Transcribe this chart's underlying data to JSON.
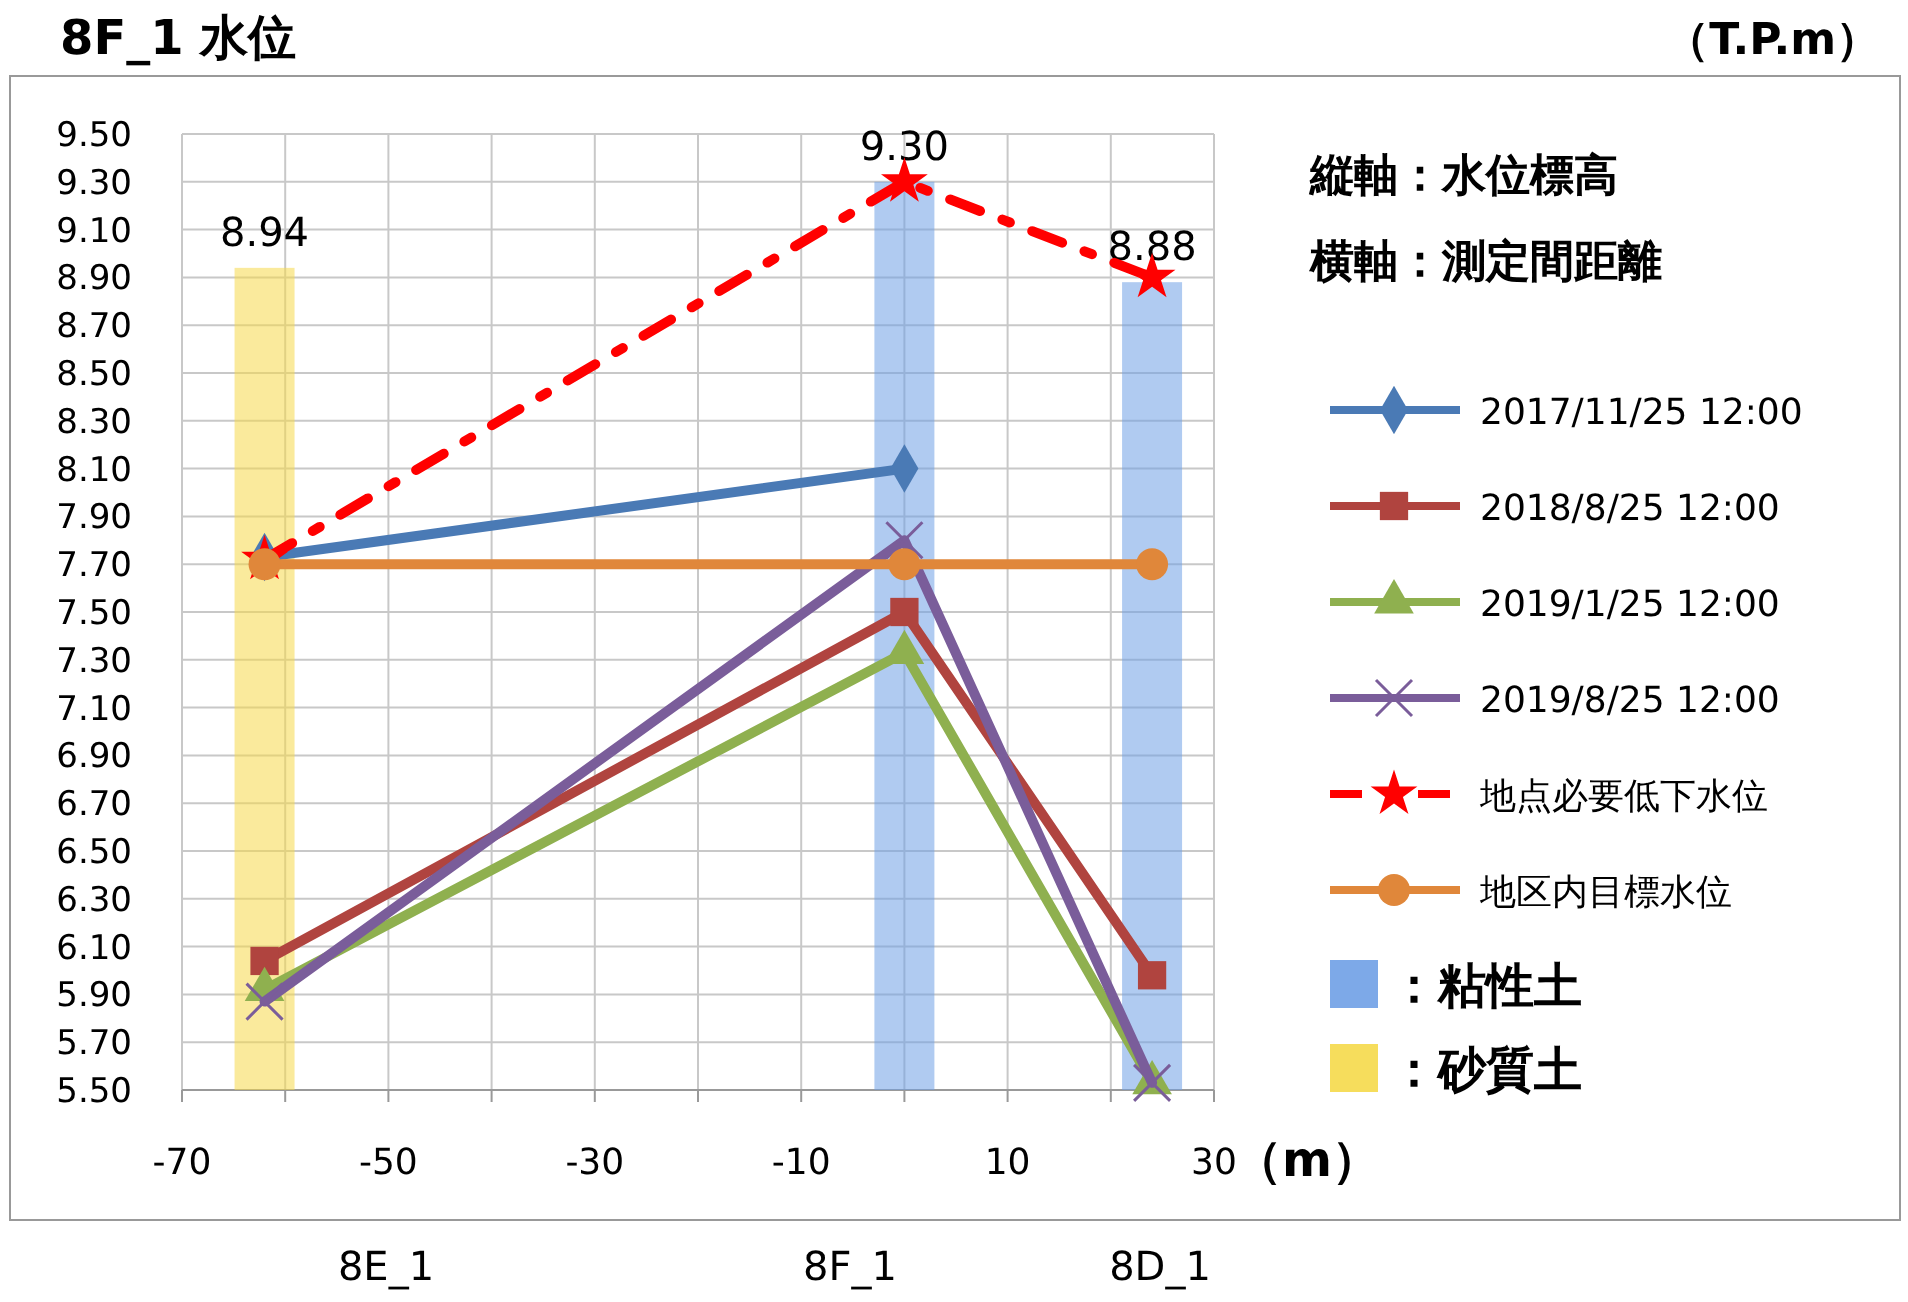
{
  "chart_data": {
    "type": "line",
    "title": "8F_1 水位",
    "xlabel": "（m）",
    "annotations": [
      "（T.P.m）",
      "縦軸：水位標高",
      "横軸：測定間距離",
      "8E_1",
      "8F_1",
      "8D_1"
    ],
    "x": [
      -62,
      0,
      24
    ],
    "series": [
      {
        "name": "2017/11/25 12:00",
        "color": "#4a7ab5",
        "values": [
          7.73,
          8.1,
          null
        ],
        "marker": "diamond"
      },
      {
        "name": "2018/8/25 12:00",
        "color": "#b0443f",
        "values": [
          6.04,
          7.5,
          5.98
        ],
        "marker": "square"
      },
      {
        "name": "2019/1/25 12:00",
        "color": "#8fb04f",
        "values": [
          5.92,
          7.33,
          5.53
        ],
        "marker": "triangle"
      },
      {
        "name": "2019/8/25 12:00",
        "color": "#7a5d9a",
        "values": [
          5.87,
          7.8,
          5.53
        ],
        "marker": "cross"
      },
      {
        "name": "地点必要低下水位",
        "color": "#ff0000",
        "values": [
          7.72,
          9.3,
          8.9
        ],
        "marker": "star",
        "line_style": "dashed"
      },
      {
        "name": "地区内目標水位",
        "color": "#e0873a",
        "values": [
          7.7,
          7.7,
          7.7
        ],
        "marker": "circle"
      },
      {
        "name": "：粘性土",
        "type": "bar",
        "color": "#6fa0e6",
        "x": [
          0,
          24
        ],
        "values": [
          9.3,
          8.88
        ],
        "value_labels": [
          "9.30",
          "8.88"
        ]
      },
      {
        "name": "：砂質土",
        "type": "bar",
        "color": "#f5d94a",
        "x": [
          -62
        ],
        "values": [
          8.94
        ],
        "value_labels": [
          "8.94"
        ]
      }
    ],
    "xlim": [
      -70,
      30
    ],
    "xticks": [
      -70,
      {
        "value": -60,
        "label": null
      },
      -50,
      {
        "value": -40,
        "label": null
      },
      -30,
      {
        "value": -20,
        "label": null
      },
      -10,
      {
        "value": 0,
        "label": null
      },
      10,
      {
        "value": 20,
        "label": null
      },
      30
    ],
    "ylim": [
      5.5,
      9.5
    ],
    "yticks": [
      {
        "value": 5.5,
        "label": "5.50"
      },
      {
        "value": 5.7,
        "label": "5.70"
      },
      {
        "value": 5.9,
        "label": "5.90"
      },
      {
        "value": 6.1,
        "label": "6.10"
      },
      {
        "value": 6.3,
        "label": "6.30"
      },
      {
        "value": 6.5,
        "label": "6.50"
      },
      {
        "value": 6.7,
        "label": "6.70"
      },
      {
        "value": 6.9,
        "label": "6.90"
      },
      {
        "value": 7.1,
        "label": "7.10"
      },
      {
        "value": 7.3,
        "label": "7.30"
      },
      {
        "value": 7.5,
        "label": "7.50"
      },
      {
        "value": 7.7,
        "label": "7.70"
      },
      {
        "value": 7.9,
        "label": "7.90"
      },
      {
        "value": 8.1,
        "label": "8.10"
      },
      {
        "value": 8.3,
        "label": "8.30"
      },
      {
        "value": 8.5,
        "label": "8.50"
      },
      {
        "value": 8.7,
        "label": "8.70"
      },
      {
        "value": 8.9,
        "label": "8.90"
      },
      {
        "value": 9.1,
        "label": "9.10"
      },
      {
        "value": 9.3,
        "label": "9.30"
      },
      {
        "value": 9.5,
        "label": "9.50"
      }
    ],
    "grid": true,
    "legend": "right"
  }
}
